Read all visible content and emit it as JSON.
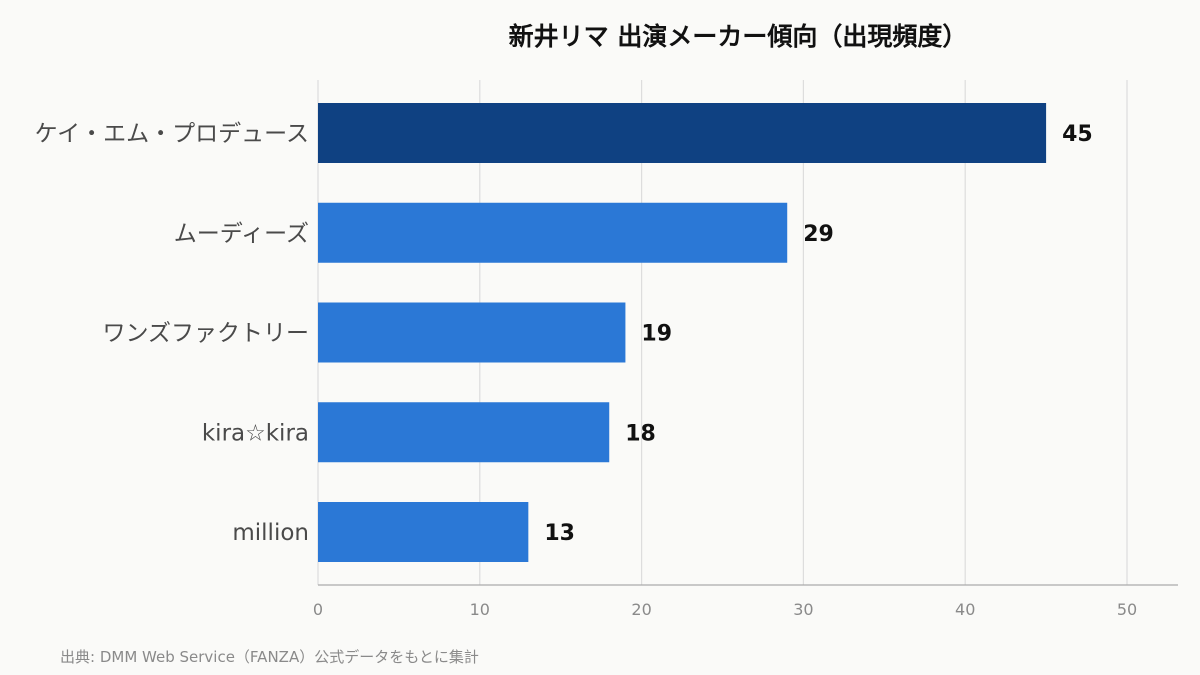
{
  "chart_data": {
    "type": "bar",
    "orientation": "horizontal",
    "title": "新井リマ 出演メーカー傾向（出現頻度）",
    "categories": [
      "ケイ・エム・プロデュース",
      "ムーディーズ",
      "ワンズファクトリー",
      "kira☆kira",
      "million"
    ],
    "values": [
      45,
      29,
      19,
      18,
      13
    ],
    "xlim": [
      0,
      53
    ],
    "xticks": [
      0,
      10,
      20,
      30,
      40,
      50
    ],
    "grid": true,
    "xlabel": "",
    "ylabel": "",
    "colors": {
      "highlight": "#0f4182",
      "default": "#2b78d6"
    }
  },
  "source": "出典: DMM Web Service（FANZA）公式データをもとに集計"
}
